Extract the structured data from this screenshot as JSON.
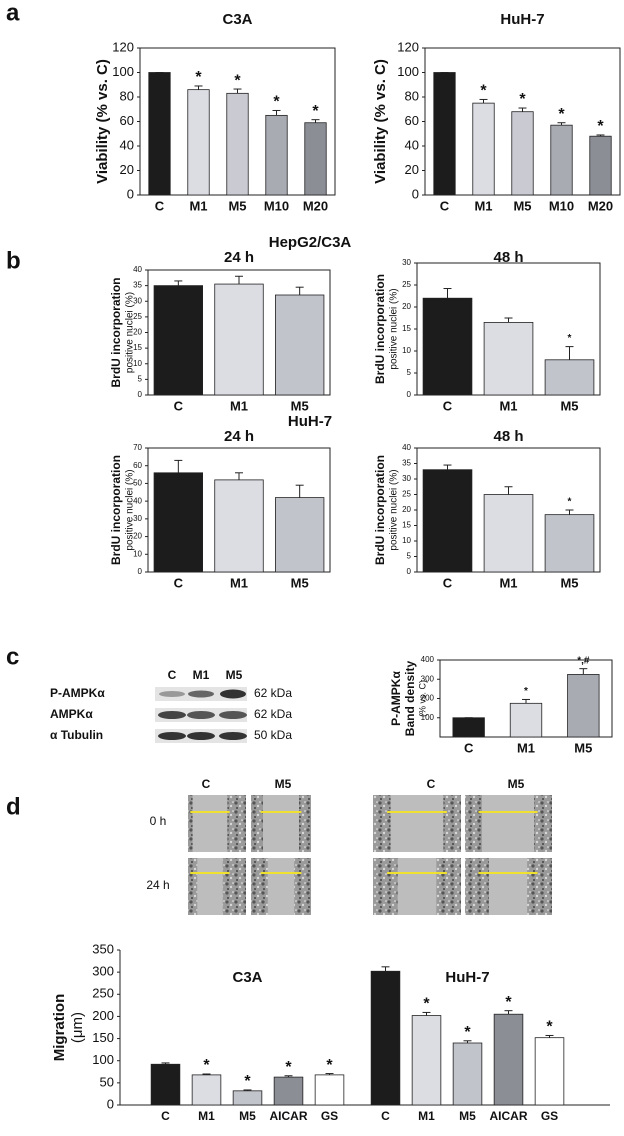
{
  "panel_labels": [
    "a",
    "b",
    "c",
    "d"
  ],
  "section_titles": [
    "HepG2/C3A",
    "HuH-7"
  ],
  "blot": {
    "lanes": [
      "C",
      "M1",
      "M5"
    ],
    "rows": [
      {
        "protein": "P-AMPKα",
        "size": "62 kDa"
      },
      {
        "protein": "AMPKα",
        "size": "62 kDa"
      },
      {
        "protein": "α Tubulin",
        "size": "50 kDa"
      }
    ]
  },
  "micrographs": {
    "columns": [
      "C",
      "M5",
      "C",
      "M5"
    ],
    "rows": [
      "0 h",
      "24 h"
    ]
  },
  "chart_data": [
    {
      "type": "bar",
      "title": "C3A",
      "y_label": [
        "Viability (% vs. C)"
      ],
      "categories": [
        "C",
        "M1",
        "M5",
        "M10",
        "M20"
      ],
      "values": [
        100,
        86,
        83,
        65,
        59
      ],
      "errors": [
        0,
        3,
        3.5,
        4,
        2.5
      ],
      "annotations": [
        null,
        "*",
        "*",
        "*",
        "*"
      ],
      "colors": [
        "#1c1c1c",
        "#dcdde3",
        "#c9cad2",
        "#a9abb3",
        "#8c8e96"
      ],
      "ylim": [
        0,
        120
      ],
      "yticks": [
        0,
        20,
        40,
        60,
        80,
        100,
        120
      ]
    },
    {
      "type": "bar",
      "title": "HuH-7",
      "y_label": [
        "Viability (% vs. C)"
      ],
      "categories": [
        "C",
        "M1",
        "M5",
        "M10",
        "M20"
      ],
      "values": [
        100,
        75,
        68,
        57,
        48
      ],
      "errors": [
        0,
        3,
        3,
        2,
        1
      ],
      "annotations": [
        null,
        "*",
        "*",
        "*",
        "*"
      ],
      "colors": [
        "#1c1c1c",
        "#dcdde3",
        "#c9cad2",
        "#a9abb3",
        "#8c8e96"
      ],
      "ylim": [
        0,
        120
      ],
      "yticks": [
        0,
        20,
        40,
        60,
        80,
        100,
        120
      ]
    },
    {
      "type": "bar",
      "title": "24 h",
      "y_label": [
        "BrdU incorporation",
        "positive nuclei (%)"
      ],
      "categories": [
        "C",
        "M1",
        "M5"
      ],
      "values": [
        35,
        35.5,
        32
      ],
      "errors": [
        1.5,
        2.5,
        2.5
      ],
      "annotations": [
        null,
        null,
        null
      ],
      "colors": [
        "#1c1c1c",
        "#dcdde3",
        "#c2c4cc"
      ],
      "ylim": [
        0,
        40
      ],
      "yticks": [
        0,
        5,
        10,
        15,
        20,
        25,
        30,
        35,
        40
      ]
    },
    {
      "type": "bar",
      "title": "48 h",
      "y_label": [
        "BrdU incorporation",
        "positive nuclei (%)"
      ],
      "categories": [
        "C",
        "M1",
        "M5"
      ],
      "values": [
        22,
        16.5,
        8
      ],
      "errors": [
        2.2,
        1,
        3
      ],
      "annotations": [
        null,
        null,
        "*"
      ],
      "colors": [
        "#1c1c1c",
        "#dcdde3",
        "#c2c4cc"
      ],
      "ylim": [
        0,
        30
      ],
      "yticks": [
        0,
        5,
        10,
        15,
        20,
        25,
        30
      ]
    },
    {
      "type": "bar",
      "title": "24 h",
      "y_label": [
        "BrdU incorporation",
        "positive nuclei (%)"
      ],
      "categories": [
        "C",
        "M1",
        "M5"
      ],
      "values": [
        56,
        52,
        42
      ],
      "errors": [
        7,
        4,
        7
      ],
      "annotations": [
        null,
        null,
        null
      ],
      "colors": [
        "#1c1c1c",
        "#dcdde3",
        "#c2c4cc"
      ],
      "ylim": [
        0,
        70
      ],
      "yticks": [
        0,
        10,
        20,
        30,
        40,
        50,
        60,
        70
      ]
    },
    {
      "type": "bar",
      "title": "48 h",
      "y_label": [
        "BrdU incorporation",
        "positive nuclei (%)"
      ],
      "categories": [
        "C",
        "M1",
        "M5"
      ],
      "values": [
        33,
        25,
        18.5
      ],
      "errors": [
        1.5,
        2.5,
        1.5
      ],
      "annotations": [
        null,
        null,
        "*"
      ],
      "colors": [
        "#1c1c1c",
        "#dcdde3",
        "#c2c4cc"
      ],
      "ylim": [
        0,
        40
      ],
      "yticks": [
        0,
        5,
        10,
        15,
        20,
        25,
        30,
        35,
        40
      ]
    },
    {
      "type": "bar",
      "y_label": [
        "P-AMPKα",
        "Band density",
        "(% vs. C)"
      ],
      "categories": [
        "C",
        "M1",
        "M5"
      ],
      "values": [
        100,
        175,
        325
      ],
      "errors": [
        0,
        20,
        30
      ],
      "annotations": [
        null,
        "*",
        "*,#"
      ],
      "colors": [
        "#1c1c1c",
        "#dcdde3",
        "#a9abb3"
      ],
      "ylim": [
        0,
        400
      ],
      "yticks": [
        100,
        200,
        300,
        400
      ]
    },
    {
      "type": "bar",
      "y_label": [
        "Migration",
        "(μm)"
      ],
      "categories": [
        "C",
        "M1",
        "M5",
        "AICAR",
        "GS"
      ],
      "colors": [
        "#1c1c1c",
        "#dcdde3",
        "#c2c4cc",
        "#8c8e96",
        "#ffffff"
      ],
      "ylim": [
        0,
        350
      ],
      "yticks": [
        0,
        50,
        100,
        150,
        200,
        250,
        300,
        350
      ],
      "groups": [
        {
          "name": "C3A",
          "values": [
            92,
            68,
            32,
            63,
            68
          ],
          "errors": [
            3,
            2,
            2,
            3,
            3
          ],
          "annotations": [
            null,
            "*",
            "*",
            "*",
            "*"
          ]
        },
        {
          "name": "HuH-7",
          "values": [
            302,
            202,
            140,
            205,
            152
          ],
          "errors": [
            10,
            7,
            5,
            8,
            5
          ],
          "annotations": [
            null,
            "*",
            "*",
            "*",
            "*"
          ]
        }
      ]
    }
  ]
}
